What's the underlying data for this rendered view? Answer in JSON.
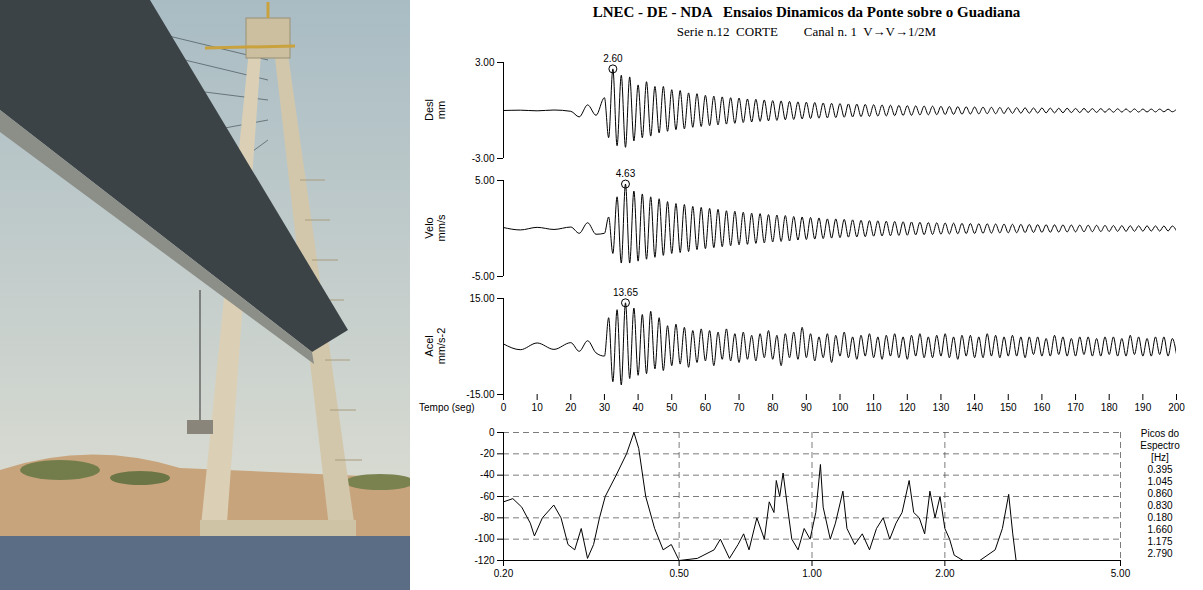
{
  "chart_data": [
    {
      "type": "line",
      "title": "LNEC - DE - NDA   Ensaios Dinamicos da Ponte sobre o Guadiana",
      "subtitle": "Serie n.12  CORTE        Canal n. 1  V→V→1/2M",
      "ylabel": "Desl\nmm",
      "color": "#000000",
      "tick_labels": "y",
      "xlim": [
        0,
        200
      ],
      "ylim": [
        -3,
        3
      ],
      "yticks": [
        {
          "value": 3,
          "label": "3.00"
        },
        {
          "value": -3,
          "label": "-3.00"
        }
      ],
      "annotations": [
        {
          "x": 32.5,
          "y": 2.6,
          "label": "2.60"
        }
      ],
      "x": [
        0,
        5,
        10,
        15,
        20,
        22.5,
        25,
        27.5,
        30,
        31.25,
        32.5,
        33.75,
        35,
        36.25,
        37.5,
        38.75,
        40,
        41.25,
        42.5,
        43.75,
        45,
        46.25,
        47.5,
        48.75,
        50,
        51.25,
        52.5,
        53.75,
        55,
        56.25,
        57.5,
        58.75,
        60,
        61.25,
        62.5,
        63.75,
        65,
        66.25,
        67.5,
        68.75,
        70,
        71.25,
        72.5,
        73.75,
        75,
        76.25,
        77.5,
        78.75,
        80,
        81.25,
        82.5,
        83.75,
        85,
        86.25,
        87.5,
        88.75,
        90,
        91.25,
        92.5,
        93.75,
        95,
        96.25,
        97.5,
        98.75,
        100,
        101.25,
        102.5,
        103.75,
        105,
        106.25,
        107.5,
        108.75,
        110,
        111.25,
        112.5,
        113.75,
        115,
        116.25,
        117.5,
        118.75,
        120,
        121.25,
        122.5,
        123.75,
        125,
        126.25,
        127.5,
        128.75,
        130,
        131.25,
        132.5,
        133.75,
        135,
        136.25,
        137.5,
        138.75,
        140,
        141.25,
        142.5,
        143.75,
        145,
        146.25,
        147.5,
        148.75,
        150,
        151.25,
        152.5,
        153.75,
        155,
        156.25,
        157.5,
        158.75,
        160,
        161.25,
        162.5,
        163.75,
        165,
        166.25,
        167.5,
        168.75,
        170,
        171.25,
        172.5,
        173.75,
        175,
        176.25,
        177.5,
        178.75,
        180,
        181.25,
        182.5,
        183.75,
        185,
        186.25,
        187.5,
        188.75,
        190,
        191.25,
        192.5,
        193.75,
        195,
        196.25,
        197.5,
        198.75,
        200
      ],
      "values": [
        0,
        0.02,
        -0.02,
        0.03,
        -0.05,
        -0.4,
        0.35,
        -0.3,
        0.8,
        -1.7,
        2.6,
        -2.2,
        2.2,
        -2.3,
        2.1,
        -1.9,
        1.6,
        -1.7,
        1.8,
        -1.6,
        1.5,
        -1.4,
        1.5,
        -1.3,
        1.3,
        -1.2,
        1.25,
        -1.15,
        1.1,
        -1.05,
        1.05,
        -1.0,
        0.95,
        -0.95,
        0.9,
        -0.9,
        0.85,
        -0.85,
        0.8,
        -0.8,
        0.78,
        -0.75,
        0.72,
        -0.72,
        0.7,
        -0.68,
        0.66,
        -0.65,
        0.62,
        -0.62,
        0.6,
        -0.58,
        0.57,
        -0.56,
        0.54,
        -0.53,
        0.52,
        -0.5,
        0.5,
        -0.48,
        0.47,
        -0.46,
        0.45,
        -0.44,
        0.43,
        -0.42,
        0.41,
        -0.4,
        0.4,
        -0.38,
        0.38,
        -0.37,
        0.36,
        -0.35,
        0.35,
        -0.34,
        0.33,
        -0.32,
        0.32,
        -0.31,
        0.3,
        -0.3,
        0.29,
        -0.28,
        0.28,
        -0.27,
        0.27,
        -0.26,
        0.26,
        -0.25,
        0.25,
        -0.24,
        0.24,
        -0.23,
        0.23,
        -0.22,
        0.22,
        -0.21,
        0.21,
        -0.2,
        0.2,
        -0.2,
        0.19,
        -0.19,
        0.18,
        -0.18,
        0.18,
        -0.17,
        0.17,
        -0.17,
        0.16,
        -0.16,
        0.16,
        -0.15,
        0.15,
        -0.15,
        0.14,
        -0.14,
        0.14,
        -0.13,
        0.13,
        -0.13,
        0.13,
        -0.12,
        0.12,
        -0.12,
        0.12,
        -0.11,
        0.11,
        -0.11,
        0.11,
        -0.1,
        0.1,
        -0.1,
        0.1,
        -0.1,
        0.09,
        -0.09,
        0.09,
        -0.09,
        0.09,
        -0.08,
        0.08,
        -0.08,
        0.08
      ]
    },
    {
      "type": "line",
      "ylabel": "Velo\nmm/s",
      "color": "#000000",
      "tick_labels": "y",
      "xlim": [
        0,
        200
      ],
      "ylim": [
        -5,
        5
      ],
      "yticks": [
        {
          "value": 5,
          "label": "5.00"
        },
        {
          "value": -5,
          "label": "-5.00"
        }
      ],
      "annotations": [
        {
          "x": 36.25,
          "y": 4.63,
          "label": "4.63"
        }
      ],
      "x": [
        0,
        5,
        10,
        15,
        20,
        22.5,
        25,
        27.5,
        30,
        31.25,
        32.5,
        33.75,
        35,
        36.25,
        37.5,
        38.75,
        40,
        41.25,
        42.5,
        43.75,
        45,
        46.25,
        47.5,
        48.75,
        50,
        51.25,
        52.5,
        53.75,
        55,
        56.25,
        57.5,
        58.75,
        60,
        61.25,
        62.5,
        63.75,
        65,
        66.25,
        67.5,
        68.75,
        70,
        71.25,
        72.5,
        73.75,
        75,
        76.25,
        77.5,
        78.75,
        80,
        81.25,
        82.5,
        83.75,
        85,
        86.25,
        87.5,
        88.75,
        90,
        91.25,
        92.5,
        93.75,
        95,
        96.25,
        97.5,
        98.75,
        100,
        101.25,
        102.5,
        103.75,
        105,
        106.25,
        107.5,
        108.75,
        110,
        111.25,
        112.5,
        113.75,
        115,
        116.25,
        117.5,
        118.75,
        120,
        121.25,
        122.5,
        123.75,
        125,
        126.25,
        127.5,
        128.75,
        130,
        131.25,
        132.5,
        133.75,
        135,
        136.25,
        137.5,
        138.75,
        140,
        141.25,
        142.5,
        143.75,
        145,
        146.25,
        147.5,
        148.75,
        150,
        151.25,
        152.5,
        153.75,
        155,
        156.25,
        157.5,
        158.75,
        160,
        161.25,
        162.5,
        163.75,
        165,
        166.25,
        167.5,
        168.75,
        170,
        171.25,
        172.5,
        173.75,
        175,
        176.25,
        177.5,
        178.75,
        180,
        181.25,
        182.5,
        183.75,
        185,
        186.25,
        187.5,
        188.75,
        190,
        191.25,
        192.5,
        193.75,
        195,
        196.25,
        197.5,
        198.75,
        200
      ],
      "values": [
        0.1,
        -0.15,
        0.12,
        -0.1,
        0.15,
        -0.5,
        0.6,
        -0.6,
        -0.5,
        1.2,
        -2.6,
        3.3,
        -3.6,
        4.63,
        -3.6,
        3.9,
        -3.4,
        3.6,
        -3.2,
        3.3,
        -3.0,
        3.1,
        -2.8,
        2.8,
        -2.6,
        2.6,
        -2.5,
        2.5,
        -2.4,
        2.3,
        -2.2,
        2.2,
        -2.1,
        2.1,
        -2.0,
        2.0,
        -1.9,
        1.85,
        -1.8,
        1.8,
        -1.7,
        1.7,
        -1.65,
        1.6,
        -1.55,
        1.55,
        -1.5,
        1.45,
        -1.4,
        1.4,
        -1.35,
        1.35,
        -1.3,
        1.25,
        -1.2,
        1.2,
        -1.15,
        1.15,
        -1.1,
        1.1,
        -1.05,
        1.0,
        -1.0,
        1.0,
        -0.95,
        0.95,
        -0.9,
        0.9,
        -0.88,
        0.85,
        -0.85,
        0.82,
        -0.8,
        0.8,
        -0.78,
        0.76,
        -0.75,
        0.73,
        -0.72,
        0.7,
        -0.7,
        0.68,
        -0.66,
        0.65,
        -0.64,
        0.62,
        -0.62,
        0.6,
        -0.6,
        0.58,
        -0.57,
        0.56,
        -0.55,
        0.54,
        -0.53,
        0.52,
        -0.52,
        0.5,
        -0.5,
        0.49,
        -0.48,
        0.47,
        -0.46,
        0.46,
        -0.45,
        0.44,
        -0.44,
        0.43,
        -0.42,
        0.42,
        -0.41,
        0.4,
        -0.4,
        0.39,
        -0.39,
        0.38,
        -0.37,
        0.37,
        -0.36,
        0.36,
        -0.35,
        0.35,
        -0.34,
        0.34,
        -0.33,
        0.33,
        -0.32,
        0.32,
        -0.31,
        0.31,
        -0.3,
        0.3,
        -0.3,
        0.29,
        -0.29,
        0.28,
        -0.28,
        0.28,
        -0.27,
        0.27,
        -0.27,
        0.26,
        -0.26,
        0.26,
        -0.25
      ]
    },
    {
      "type": "line",
      "ylabel": "Acel\nmm/s-2",
      "xlabel": "Tempo (seg)",
      "color": "#000000",
      "xlim": [
        0,
        200
      ],
      "xticks": [
        0,
        10,
        20,
        30,
        40,
        50,
        60,
        70,
        80,
        90,
        100,
        110,
        120,
        130,
        140,
        150,
        160,
        170,
        180,
        190,
        200
      ],
      "ylim": [
        -15,
        15
      ],
      "yticks": [
        {
          "value": 15,
          "label": "15.00"
        },
        {
          "value": -15,
          "label": "-15.00"
        }
      ],
      "annotations": [
        {
          "x": 36.25,
          "y": 13.65,
          "label": "13.65"
        }
      ],
      "x": [
        0,
        5,
        10,
        15,
        20,
        22.5,
        25,
        27.5,
        30,
        31.25,
        32.5,
        33.75,
        35,
        36.25,
        37.5,
        38.75,
        40,
        41.25,
        42.5,
        43.75,
        45,
        46.25,
        47.5,
        48.75,
        50,
        51.25,
        52.5,
        53.75,
        55,
        56.25,
        57.5,
        58.75,
        60,
        61.25,
        62.5,
        63.75,
        65,
        66.25,
        67.5,
        68.75,
        70,
        71.25,
        72.5,
        73.75,
        75,
        76.25,
        77.5,
        78.75,
        80,
        81.25,
        82.5,
        83.75,
        85,
        86.25,
        87.5,
        88.75,
        90,
        91.25,
        92.5,
        93.75,
        95,
        96.25,
        97.5,
        98.75,
        100,
        101.25,
        102.5,
        103.75,
        105,
        106.25,
        107.5,
        108.75,
        110,
        111.25,
        112.5,
        113.75,
        115,
        116.25,
        117.5,
        118.75,
        120,
        121.25,
        122.5,
        123.75,
        125,
        126.25,
        127.5,
        128.75,
        130,
        131.25,
        132.5,
        133.75,
        135,
        136.25,
        137.5,
        138.75,
        140,
        141.25,
        142.5,
        143.75,
        145,
        146.25,
        147.5,
        148.75,
        150,
        151.25,
        152.5,
        153.75,
        155,
        156.25,
        157.5,
        158.75,
        160,
        161.25,
        162.5,
        163.75,
        165,
        166.25,
        167.5,
        168.75,
        170,
        171.25,
        172.5,
        173.75,
        175,
        176.25,
        177.5,
        178.75,
        180,
        181.25,
        182.5,
        183.75,
        185,
        186.25,
        187.5,
        188.75,
        190,
        191.25,
        192.5,
        193.75,
        195,
        196.25,
        197.5,
        198.75,
        200
      ],
      "values": [
        0.8,
        -1.0,
        1.1,
        -0.9,
        1.2,
        -1.5,
        1.8,
        -2.0,
        -3,
        9,
        -11,
        11.5,
        -12,
        13.65,
        -10,
        12,
        -9,
        10,
        -8.5,
        11,
        -7,
        9,
        -7.5,
        6.5,
        -6,
        7,
        -5.5,
        6,
        -6.5,
        5,
        -5,
        5.5,
        -4.5,
        5,
        -6,
        4.5,
        -4,
        5.5,
        -4.5,
        4,
        -5,
        4.5,
        -4,
        3.5,
        -4.5,
        4,
        -3.5,
        5,
        -4,
        3.5,
        -6,
        4,
        -3.5,
        4.5,
        -4,
        6,
        -3.5,
        4,
        -4.5,
        3,
        -3.5,
        4,
        -5,
        3.5,
        -3,
        4.5,
        -3.5,
        3,
        -4,
        3.5,
        -3,
        4,
        -3.5,
        3,
        -4,
        3.5,
        -3,
        4,
        -3.5,
        3,
        -4,
        3.5,
        -3,
        4,
        -3.5,
        3,
        -3.5,
        3.5,
        -3,
        4,
        -3.5,
        3,
        -4,
        3.5,
        -3,
        3.5,
        -3.5,
        3,
        -3.5,
        4,
        -3,
        3.5,
        -3.5,
        3,
        -3,
        3.5,
        -3,
        3,
        -3.5,
        3,
        -2.5,
        3,
        -3,
        2.5,
        -3,
        3.5,
        -2.5,
        3,
        -3,
        2.5,
        -3,
        3,
        -2.5,
        3,
        -3,
        2.5,
        -3,
        3,
        -2.5,
        3,
        -3,
        2.5,
        -3,
        3.5,
        -2.5,
        3,
        -3,
        2.5,
        -3,
        3,
        -2.5,
        3,
        -3,
        2.5,
        -2.5
      ]
    },
    {
      "type": "line",
      "log": "x",
      "grid": true,
      "color": "#000000",
      "xlim": [
        0.2,
        5
      ],
      "xticks": [
        {
          "value": 0.2,
          "label": "0.20"
        },
        {
          "value": 0.5,
          "label": "0.50"
        },
        {
          "value": 1,
          "label": "1.00"
        },
        {
          "value": 2,
          "label": "2.00"
        },
        {
          "value": 5,
          "label": "5.00"
        }
      ],
      "ylim": [
        -120,
        0
      ],
      "yticks": [
        0,
        -20,
        -40,
        -60,
        -80,
        -100,
        -120
      ],
      "peaks": {
        "title": "Picos do Espectro",
        "unit": "[Hz]",
        "values": [
          0.395,
          1.045,
          0.86,
          0.83,
          0.18,
          1.66,
          1.175,
          2.79
        ],
        "value_labels": [
          "0.395",
          "1.045",
          "0.860",
          "0.830",
          "0.180",
          "1.660",
          "1.175",
          "2.790"
        ]
      },
      "x": [
        0.2,
        0.21,
        0.22,
        0.23,
        0.235,
        0.245,
        0.26,
        0.27,
        0.28,
        0.29,
        0.3,
        0.31,
        0.32,
        0.33,
        0.34,
        0.36,
        0.38,
        0.395,
        0.405,
        0.42,
        0.44,
        0.46,
        0.48,
        0.5,
        0.55,
        0.6,
        0.62,
        0.65,
        0.68,
        0.7,
        0.72,
        0.75,
        0.78,
        0.8,
        0.82,
        0.83,
        0.845,
        0.86,
        0.88,
        0.9,
        0.93,
        0.96,
        0.99,
        1.02,
        1.045,
        1.06,
        1.1,
        1.13,
        1.175,
        1.2,
        1.25,
        1.3,
        1.35,
        1.4,
        1.45,
        1.5,
        1.55,
        1.6,
        1.66,
        1.7,
        1.75,
        1.8,
        1.85,
        1.9,
        1.95,
        2.0,
        2.05,
        2.1,
        2.2,
        2.4,
        2.6,
        2.7,
        2.79,
        2.85,
        2.9
      ],
      "values": [
        -65,
        -62,
        -70,
        -85,
        -97,
        -80,
        -68,
        -80,
        -105,
        -110,
        -90,
        -118,
        -105,
        -80,
        -60,
        -40,
        -20,
        0,
        -15,
        -60,
        -90,
        -110,
        -105,
        -120,
        -118,
        -110,
        -100,
        -118,
        -105,
        -95,
        -110,
        -80,
        -100,
        -65,
        -75,
        -45,
        -60,
        -38,
        -70,
        -100,
        -110,
        -90,
        -100,
        -75,
        -30,
        -70,
        -100,
        -85,
        -55,
        -90,
        -105,
        -95,
        -110,
        -90,
        -80,
        -100,
        -85,
        -75,
        -45,
        -75,
        -80,
        -95,
        -55,
        -80,
        -60,
        -90,
        -100,
        -115,
        -120,
        -120,
        -110,
        -90,
        -58,
        -95,
        -120
      ]
    }
  ]
}
